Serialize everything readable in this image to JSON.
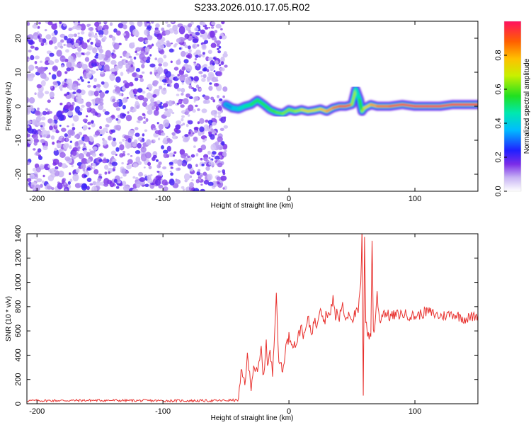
{
  "figure_title": "S233.2026.010.17.05.R02",
  "chart_data": [
    {
      "type": "heatmap",
      "title": "",
      "xlabel": "Height of straight line (km)",
      "ylabel": "Frequency (Hz)",
      "xlim": [
        -208,
        150
      ],
      "ylim": [
        -25,
        25
      ],
      "xticks": [
        -200,
        -100,
        0,
        100
      ],
      "yticks": [
        -20,
        -10,
        0,
        10,
        20
      ],
      "noise_region_x": [
        -208,
        -50
      ],
      "ridge": {
        "x": [
          -50,
          -45,
          -40,
          -35,
          -30,
          -25,
          -20,
          -15,
          -10,
          -5,
          0,
          5,
          10,
          15,
          20,
          25,
          30,
          35,
          40,
          45,
          50,
          53,
          56,
          58,
          60,
          65,
          70,
          80,
          90,
          100,
          110,
          120,
          130,
          140,
          150
        ],
        "freq": [
          0.5,
          -0.5,
          -0.8,
          0.0,
          0.5,
          1.8,
          0.5,
          -1.0,
          -1.8,
          -2.2,
          -1.0,
          -1.5,
          -1.0,
          -1.5,
          -1.2,
          -0.8,
          -1.5,
          -0.5,
          0.0,
          0.0,
          0.5,
          5.0,
          2.0,
          -1.5,
          -0.5,
          0.5,
          0.0,
          0.0,
          0.5,
          0.0,
          0.0,
          0.0,
          0.5,
          0.5,
          0.5
        ],
        "amplitude": [
          0.25,
          0.35,
          0.4,
          0.45,
          0.5,
          0.55,
          0.5,
          0.55,
          0.6,
          0.6,
          0.65,
          0.6,
          0.7,
          0.75,
          0.7,
          0.75,
          0.8,
          0.85,
          0.9,
          0.95,
          0.9,
          0.4,
          0.5,
          0.6,
          0.7,
          0.8,
          0.85,
          0.9,
          0.95,
          0.95,
          0.95,
          0.95,
          0.95,
          0.95,
          0.95
        ]
      },
      "colorbar": {
        "label": "Normalized spectral amplitude",
        "range": [
          0.0,
          1.0
        ],
        "ticks": [
          "0.0",
          "0.2",
          "0.4",
          "0.6",
          "0.8"
        ]
      }
    },
    {
      "type": "line",
      "title": "",
      "xlabel": "Height of straight line (km)",
      "ylabel": "SNR (10 * v/v)",
      "xlim": [
        -208,
        150
      ],
      "ylim": [
        0,
        1400
      ],
      "xticks": [
        -200,
        -100,
        0,
        100
      ],
      "yticks": [
        0,
        200,
        400,
        600,
        800,
        1000,
        1200,
        1400
      ],
      "color": "#e8312e",
      "series": [
        {
          "name": "SNR",
          "x": [
            -208,
            -150,
            -100,
            -60,
            -40,
            -38,
            -35,
            -33,
            -30,
            -28,
            -25,
            -22,
            -20,
            -18,
            -17,
            -15,
            -13,
            -10,
            -8,
            -6,
            -5,
            -3,
            0,
            2,
            5,
            8,
            10,
            12,
            15,
            18,
            20,
            22,
            25,
            28,
            30,
            33,
            35,
            37,
            38,
            40,
            42,
            45,
            48,
            50,
            52,
            55,
            57,
            58,
            59,
            60,
            61,
            62,
            63,
            65,
            66,
            67,
            68,
            70,
            72,
            75,
            80,
            90,
            100,
            110,
            120,
            130,
            140,
            150
          ],
          "y": [
            25,
            28,
            25,
            25,
            30,
            250,
            180,
            380,
            150,
            320,
            240,
            450,
            200,
            550,
            300,
            420,
            250,
            930,
            300,
            350,
            240,
            450,
            550,
            520,
            480,
            570,
            650,
            540,
            700,
            590,
            680,
            650,
            820,
            670,
            760,
            720,
            900,
            680,
            760,
            700,
            820,
            700,
            760,
            700,
            730,
            760,
            980,
            1400,
            60,
            1400,
            700,
            620,
            550,
            560,
            1380,
            600,
            620,
            900,
            680,
            760,
            720,
            740,
            720,
            760,
            720,
            740,
            700,
            730
          ]
        }
      ]
    }
  ]
}
